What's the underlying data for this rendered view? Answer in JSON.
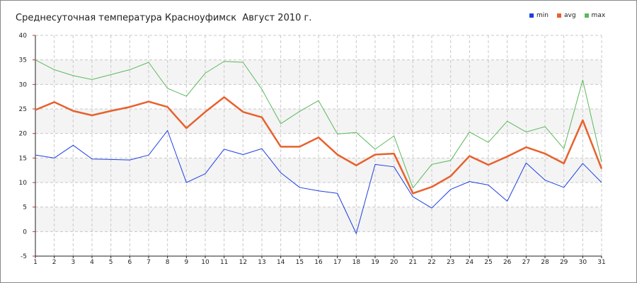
{
  "title": "Среднесуточная температура Красноуфимск  Август 2010 г.",
  "colors": {
    "min": "#1f3fe0",
    "avg": "#e8612c",
    "max": "#5cb85c",
    "grid": "#c8c8c8",
    "band": "#f4f4f4"
  },
  "chart_data": {
    "type": "line",
    "title": "Среднесуточная температура Красноуфимск  Август 2010 г.",
    "xlabel": "",
    "ylabel": "",
    "x": [
      1,
      2,
      3,
      4,
      5,
      6,
      7,
      8,
      9,
      10,
      11,
      12,
      13,
      14,
      15,
      16,
      17,
      18,
      19,
      20,
      21,
      22,
      23,
      24,
      25,
      26,
      27,
      28,
      29,
      30,
      31
    ],
    "ylim": [
      -5,
      40
    ],
    "yticks": [
      -5,
      0,
      5,
      10,
      15,
      20,
      25,
      30,
      35,
      40
    ],
    "grid": true,
    "legend_position": "top-right",
    "series": [
      {
        "name": "min",
        "color": "#1f3fe0",
        "values": [
          15.6,
          15.0,
          17.6,
          14.8,
          14.7,
          14.6,
          15.6,
          20.6,
          10.0,
          11.8,
          16.8,
          15.7,
          16.9,
          12.0,
          9.0,
          8.3,
          7.8,
          -0.4,
          13.7,
          13.2,
          7.1,
          4.8,
          8.6,
          10.2,
          9.5,
          6.2,
          14.0,
          10.5,
          9.0,
          13.9,
          10.0
        ]
      },
      {
        "name": "avg",
        "color": "#e8612c",
        "values": [
          24.8,
          26.4,
          24.6,
          23.7,
          24.6,
          25.4,
          26.5,
          25.4,
          21.1,
          24.4,
          27.4,
          24.4,
          23.3,
          17.3,
          17.3,
          19.2,
          15.7,
          13.5,
          15.7,
          15.9,
          7.8,
          9.1,
          11.3,
          15.4,
          13.6,
          15.3,
          17.2,
          15.9,
          13.9,
          22.7,
          12.8
        ]
      },
      {
        "name": "max",
        "color": "#5cb85c",
        "values": [
          35.0,
          33.0,
          31.8,
          31.0,
          32.0,
          33.0,
          34.5,
          29.2,
          27.6,
          32.3,
          34.7,
          34.5,
          29.0,
          22.0,
          24.5,
          26.7,
          19.9,
          20.2,
          16.8,
          19.5,
          8.9,
          13.7,
          14.5,
          20.3,
          18.2,
          22.5,
          20.3,
          21.4,
          16.9,
          30.9,
          14.2
        ]
      }
    ]
  }
}
